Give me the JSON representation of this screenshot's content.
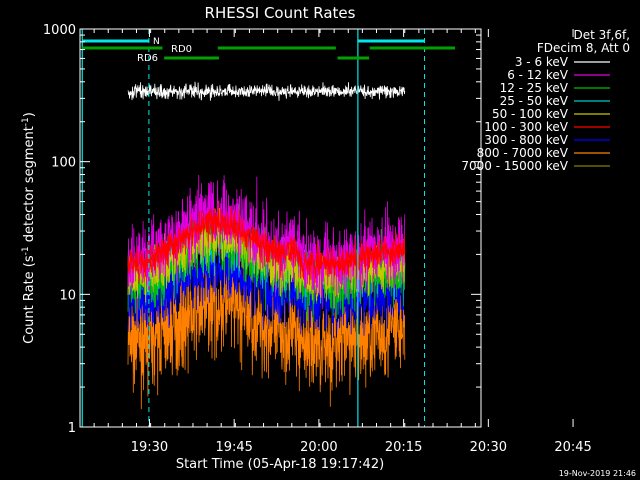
{
  "chart_data": {
    "type": "line",
    "title": "RHESSI Count Rates",
    "xlabel": "Start Time (05-Apr-18 19:17:42)",
    "ylabel_parts": [
      "Count Rate (s",
      "-1",
      " detector segment",
      "-1",
      ")"
    ],
    "yscale": "log",
    "ylim": [
      1,
      1000
    ],
    "xlim_minutes": [
      0,
      71
    ],
    "x_ticks": [
      {
        "label": "19:30",
        "minute": 12.3
      },
      {
        "label": "19:45",
        "minute": 27.3
      },
      {
        "label": "20:00",
        "minute": 42.3
      },
      {
        "label": "20:15",
        "minute": 57.3
      },
      {
        "label": "20:30",
        "minute": 72.3
      },
      {
        "label": "20:45",
        "minute": 87.3
      }
    ],
    "y_ticks": [
      {
        "label": "1",
        "value": 1
      },
      {
        "label": "10",
        "value": 10
      },
      {
        "label": "100",
        "value": 100
      },
      {
        "label": "1000",
        "value": 1000
      }
    ],
    "legend_position": "top-right",
    "legend_header": [
      "Det 3f,6f,",
      "FDecim 8, Att 0"
    ],
    "grid": false,
    "series": [
      {
        "name": "3 - 6 keV",
        "color": "#000000",
        "values": [
          350,
          350
        ]
      },
      {
        "name": "6 - 12 keV",
        "color": "#e000e0",
        "values": [
          22,
          48,
          30,
          34
        ]
      },
      {
        "name": "12 - 25 keV",
        "color": "#00c000",
        "values": [
          12,
          26,
          17,
          20
        ]
      },
      {
        "name": "25 - 50 keV",
        "color": "#00c8c8",
        "values": [
          13,
          24,
          16,
          18
        ]
      },
      {
        "name": "50 - 100 keV",
        "color": "#c8c800",
        "values": [
          13,
          27,
          17,
          20
        ]
      },
      {
        "name": "100 - 300 keV",
        "color": "#ff0000",
        "values": [
          16,
          34,
          21,
          24
        ]
      },
      {
        "name": "300 - 800 keV",
        "color": "#0000ff",
        "values": [
          8,
          15,
          10,
          11
        ]
      },
      {
        "name": "800 - 7000 keV",
        "color": "#ff8000",
        "values": [
          4,
          8,
          5,
          6
        ]
      },
      {
        "name": "7000 - 15000 keV",
        "color": "#808000",
        "values": []
      }
    ],
    "annotations": {
      "flags": [
        {
          "label": "N",
          "color": "#00e8e8"
        },
        {
          "label": "RD0",
          "color": "#00a000"
        },
        {
          "label": "RD6",
          "color": "#00a000"
        }
      ]
    },
    "footer_date": "19-Nov-2019 21:46"
  }
}
